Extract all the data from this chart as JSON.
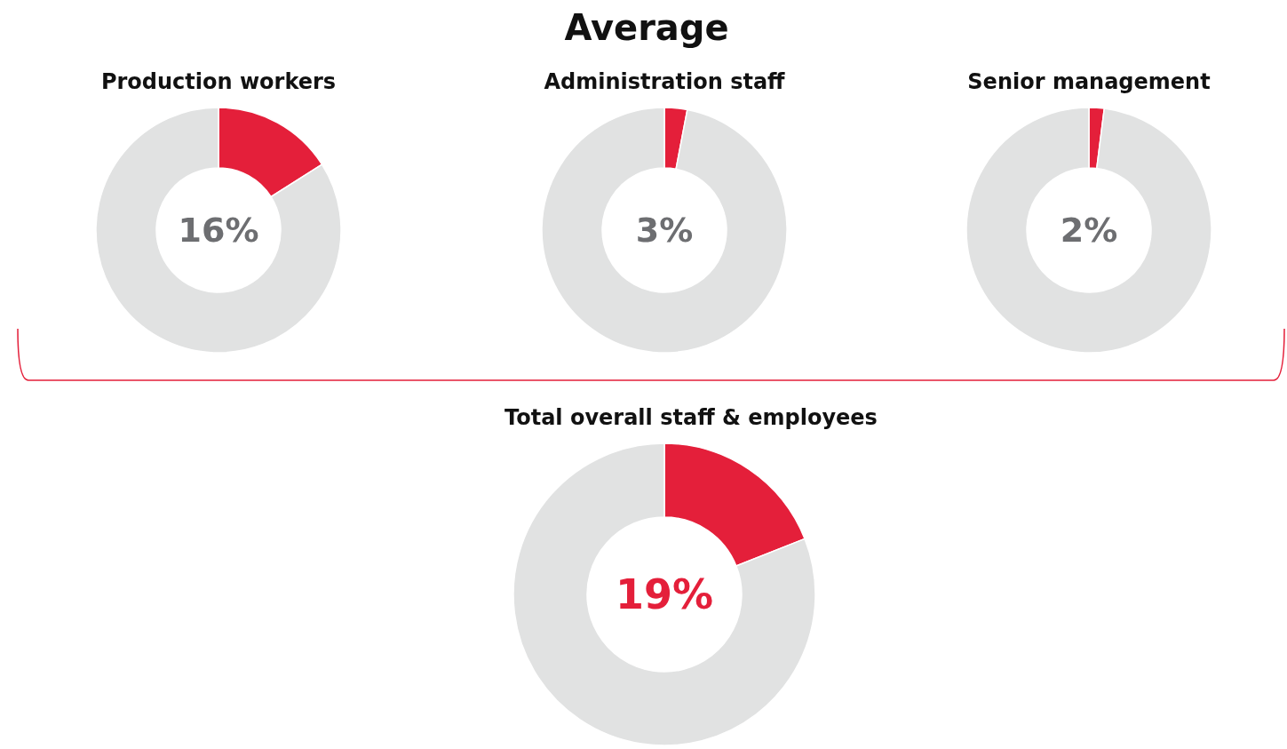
{
  "chart_data": [
    {
      "type": "other",
      "title": "Average"
    },
    {
      "type": "donut",
      "title": "Production workers",
      "categories": [
        null,
        null
      ],
      "values": [
        16,
        84
      ],
      "colors": [
        "#e41f3a",
        "#e1e2e2"
      ],
      "annotations": [
        "16%"
      ]
    },
    {
      "type": "donut",
      "title": "Administration staff",
      "categories": [
        null,
        null
      ],
      "values": [
        3,
        97
      ],
      "colors": [
        "#e41f3a",
        "#e1e2e2"
      ],
      "annotations": [
        "3%"
      ]
    },
    {
      "type": "donut",
      "title": "Senior management",
      "categories": [
        null,
        null
      ],
      "values": [
        2,
        98
      ],
      "colors": [
        "#e41f3a",
        "#e1e2e2"
      ],
      "annotations": [
        "2%"
      ]
    },
    {
      "type": "donut",
      "title": "Total overall staff & employees",
      "categories": [
        null,
        null
      ],
      "values": [
        19,
        81
      ],
      "colors": [
        "#e41f3a",
        "#e1e2e2"
      ],
      "annotations": [
        "19%"
      ]
    }
  ]
}
